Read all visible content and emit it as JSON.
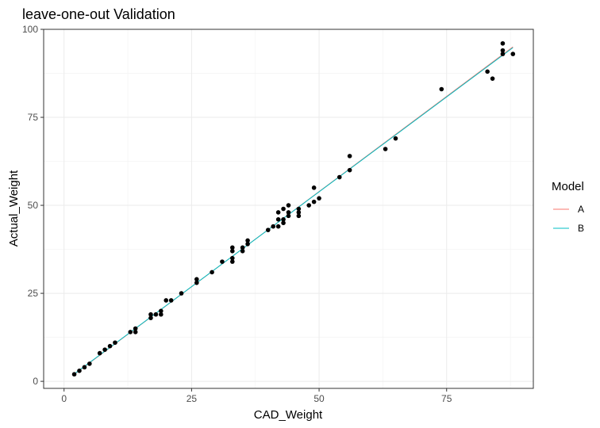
{
  "chart_data": {
    "type": "scatter",
    "title": "leave-one-out Validation",
    "xlabel": "CAD_Weight",
    "ylabel": "Actual_Weight",
    "xlim": [
      -4,
      92
    ],
    "ylim": [
      -2,
      100
    ],
    "xticks": [
      0,
      25,
      50,
      75
    ],
    "yticks": [
      0,
      25,
      50,
      75,
      100
    ],
    "grid": true,
    "legend": {
      "title": "Model",
      "position": "right",
      "entries": [
        {
          "name": "A",
          "color": "#F8766D"
        },
        {
          "name": "B",
          "color": "#00BFC4"
        }
      ]
    },
    "points_color": "#000000",
    "points": [
      [
        2,
        2
      ],
      [
        3,
        3
      ],
      [
        4,
        4
      ],
      [
        5,
        5
      ],
      [
        7,
        8
      ],
      [
        8,
        9
      ],
      [
        9,
        10
      ],
      [
        10,
        11
      ],
      [
        13,
        14
      ],
      [
        14,
        14
      ],
      [
        14,
        15
      ],
      [
        17,
        18
      ],
      [
        17,
        19
      ],
      [
        18,
        19
      ],
      [
        19,
        19
      ],
      [
        19,
        20
      ],
      [
        20,
        23
      ],
      [
        21,
        23
      ],
      [
        23,
        25
      ],
      [
        26,
        28
      ],
      [
        26,
        29
      ],
      [
        29,
        31
      ],
      [
        31,
        34
      ],
      [
        33,
        34
      ],
      [
        33,
        35
      ],
      [
        33,
        37
      ],
      [
        33,
        38
      ],
      [
        35,
        37
      ],
      [
        35,
        38
      ],
      [
        36,
        39
      ],
      [
        36,
        40
      ],
      [
        40,
        43
      ],
      [
        41,
        44
      ],
      [
        42,
        44
      ],
      [
        42,
        46
      ],
      [
        42,
        48
      ],
      [
        43,
        45
      ],
      [
        43,
        46
      ],
      [
        43,
        49
      ],
      [
        44,
        47
      ],
      [
        44,
        48
      ],
      [
        44,
        50
      ],
      [
        46,
        47
      ],
      [
        46,
        48
      ],
      [
        46,
        49
      ],
      [
        48,
        50
      ],
      [
        49,
        51
      ],
      [
        49,
        55
      ],
      [
        50,
        52
      ],
      [
        54,
        58
      ],
      [
        56,
        60
      ],
      [
        56,
        64
      ],
      [
        63,
        66
      ],
      [
        65,
        69
      ],
      [
        74,
        83
      ],
      [
        83,
        88
      ],
      [
        84,
        86
      ],
      [
        86,
        93
      ],
      [
        86,
        94
      ],
      [
        86,
        96
      ],
      [
        88,
        93
      ]
    ],
    "series": [
      {
        "name": "A",
        "x": [
          2,
          88
        ],
        "y": [
          2.0,
          95.0
        ]
      },
      {
        "name": "B",
        "x": [
          2,
          88
        ],
        "y": [
          2.1,
          94.8
        ]
      }
    ]
  }
}
